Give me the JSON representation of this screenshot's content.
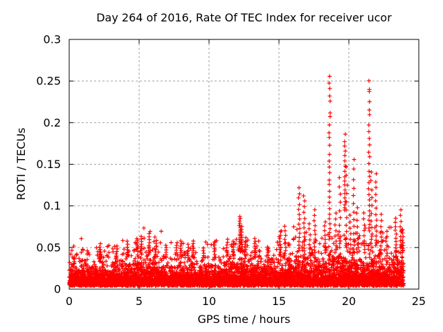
{
  "chart_data": {
    "type": "scatter",
    "title": "Day 264 of 2016, Rate Of TEC Index for receiver ucor",
    "xlabel": "GPS time / hours",
    "ylabel": "ROTI / TECUs",
    "xlim": [
      0,
      25
    ],
    "ylim": [
      0,
      0.3
    ],
    "xticks": [
      0,
      5,
      10,
      15,
      20,
      25
    ],
    "x_tick_labels": [
      "0",
      "5",
      "10",
      "15",
      "20",
      "25"
    ],
    "yticks": [
      0,
      0.05,
      0.1,
      0.15,
      0.2,
      0.25,
      0.3
    ],
    "y_tick_labels": [
      "0",
      "0.05",
      "0.1",
      "0.15",
      "0.2",
      "0.25",
      "0.3"
    ],
    "grid": true,
    "grid_style": "dashed",
    "legend": "none",
    "marker": "+",
    "marker_size_px": 7,
    "marker_color": "#ff0000",
    "grid_color": "#9e9e9e",
    "axis_color": "#000000",
    "text_color": "#000000",
    "background": "#ffffff",
    "data_time_range_hours": [
      0,
      23.92
    ],
    "max_value": {
      "t": 18.6,
      "y": 0.263
    },
    "baseline_band": {
      "description": "Dense noise band of ROTI values; solid red core ~0.005-0.035 TECU with ragged top reaching ~0.045-0.05, floor ~0.004",
      "n_points": 6000,
      "y_floor": 0.004,
      "spread_profile": [
        [
          0,
          0.0105
        ],
        [
          0.5,
          0.0115
        ],
        [
          1,
          0.01
        ],
        [
          1.5,
          0.0095
        ],
        [
          2,
          0.009
        ],
        [
          3,
          0.0095
        ],
        [
          4,
          0.01
        ],
        [
          4.8,
          0.0115
        ],
        [
          5.5,
          0.012
        ],
        [
          6,
          0.0115
        ],
        [
          6.5,
          0.01
        ],
        [
          7,
          0.0095
        ],
        [
          7.5,
          0.01
        ],
        [
          8,
          0.0105
        ],
        [
          9,
          0.0095
        ],
        [
          9.8,
          0.0085
        ],
        [
          10.5,
          0.0085
        ],
        [
          11,
          0.0095
        ],
        [
          11.8,
          0.0115
        ],
        [
          12.3,
          0.0135
        ],
        [
          13,
          0.0115
        ],
        [
          13.5,
          0.0105
        ],
        [
          14,
          0.01
        ],
        [
          14.5,
          0.0105
        ],
        [
          15,
          0.011
        ],
        [
          15.5,
          0.0115
        ],
        [
          16,
          0.0115
        ],
        [
          16.5,
          0.0125
        ],
        [
          17,
          0.012
        ],
        [
          17.5,
          0.0115
        ],
        [
          18,
          0.011
        ],
        [
          18.6,
          0.0125
        ],
        [
          19,
          0.012
        ],
        [
          19.5,
          0.0125
        ],
        [
          20,
          0.0125
        ],
        [
          20.5,
          0.012
        ],
        [
          21,
          0.0125
        ],
        [
          21.5,
          0.013
        ],
        [
          22,
          0.012
        ],
        [
          22.5,
          0.0115
        ],
        [
          23,
          0.011
        ],
        [
          23.4,
          0.0125
        ],
        [
          23.75,
          0.0145
        ],
        [
          23.92,
          0.0155
        ]
      ]
    },
    "spike_clusters": [
      {
        "t": 2.2,
        "y_min": 0.038,
        "y_max": 0.051,
        "n": 6
      },
      {
        "t": 3.4,
        "y_min": 0.038,
        "y_max": 0.052,
        "n": 6
      },
      {
        "t": 4.15,
        "y_min": 0.042,
        "y_max": 0.058,
        "n": 6
      },
      {
        "t": 4.85,
        "y_min": 0.048,
        "y_max": 0.061,
        "n": 8
      },
      {
        "t": 5.15,
        "y_min": 0.042,
        "y_max": 0.064,
        "n": 9
      },
      {
        "t": 5.7,
        "y_min": 0.042,
        "y_max": 0.067,
        "n": 9
      },
      {
        "t": 6.2,
        "y_min": 0.04,
        "y_max": 0.059,
        "n": 7
      },
      {
        "t": 6.95,
        "y_min": 0.038,
        "y_max": 0.053,
        "n": 7
      },
      {
        "t": 7.7,
        "y_min": 0.04,
        "y_max": 0.056,
        "n": 7
      },
      {
        "t": 8.0,
        "y_min": 0.04,
        "y_max": 0.058,
        "n": 8
      },
      {
        "t": 8.5,
        "y_min": 0.038,
        "y_max": 0.054,
        "n": 6
      },
      {
        "t": 8.85,
        "y_min": 0.04,
        "y_max": 0.058,
        "n": 8
      },
      {
        "t": 9.6,
        "y_min": 0.036,
        "y_max": 0.05,
        "n": 6
      },
      {
        "t": 10.4,
        "y_min": 0.036,
        "y_max": 0.058,
        "n": 7
      },
      {
        "t": 11.3,
        "y_min": 0.04,
        "y_max": 0.06,
        "n": 8
      },
      {
        "t": 11.75,
        "y_min": 0.04,
        "y_max": 0.058,
        "n": 7
      },
      {
        "t": 12.2,
        "y_min": 0.045,
        "y_max": 0.088,
        "n": 20
      },
      {
        "t": 12.35,
        "y_min": 0.045,
        "y_max": 0.076,
        "n": 12
      },
      {
        "t": 12.6,
        "y_min": 0.04,
        "y_max": 0.062,
        "n": 8
      },
      {
        "t": 13.3,
        "y_min": 0.038,
        "y_max": 0.061,
        "n": 10
      },
      {
        "t": 14.2,
        "y_min": 0.036,
        "y_max": 0.051,
        "n": 6
      },
      {
        "t": 15.1,
        "y_min": 0.04,
        "y_max": 0.069,
        "n": 10
      },
      {
        "t": 15.45,
        "y_min": 0.04,
        "y_max": 0.076,
        "n": 9
      },
      {
        "t": 16.45,
        "y_min": 0.046,
        "y_max": 0.124,
        "n": 15
      },
      {
        "t": 16.8,
        "y_min": 0.046,
        "y_max": 0.113,
        "n": 13
      },
      {
        "t": 17.2,
        "y_min": 0.04,
        "y_max": 0.08,
        "n": 8
      },
      {
        "t": 17.55,
        "y_min": 0.044,
        "y_max": 0.096,
        "n": 11
      },
      {
        "t": 18.3,
        "y_min": 0.044,
        "y_max": 0.082,
        "n": 9
      },
      {
        "t": 18.62,
        "y_min": 0.06,
        "y_max": 0.263,
        "n": 28
      },
      {
        "t": 19.05,
        "y_min": 0.044,
        "y_max": 0.092,
        "n": 9
      },
      {
        "t": 19.35,
        "y_min": 0.05,
        "y_max": 0.136,
        "n": 11
      },
      {
        "t": 19.72,
        "y_min": 0.095,
        "y_max": 0.187,
        "n": 18
      },
      {
        "t": 19.85,
        "y_min": 0.05,
        "y_max": 0.148,
        "n": 12
      },
      {
        "t": 20.1,
        "y_min": 0.044,
        "y_max": 0.09,
        "n": 8
      },
      {
        "t": 20.35,
        "y_min": 0.048,
        "y_max": 0.157,
        "n": 13
      },
      {
        "t": 20.6,
        "y_min": 0.044,
        "y_max": 0.1,
        "n": 9
      },
      {
        "t": 21.1,
        "y_min": 0.044,
        "y_max": 0.092,
        "n": 9
      },
      {
        "t": 21.45,
        "y_min": 0.07,
        "y_max": 0.256,
        "n": 26
      },
      {
        "t": 21.62,
        "y_min": 0.055,
        "y_max": 0.142,
        "n": 11
      },
      {
        "t": 21.95,
        "y_min": 0.055,
        "y_max": 0.14,
        "n": 13
      },
      {
        "t": 22.3,
        "y_min": 0.044,
        "y_max": 0.09,
        "n": 9
      },
      {
        "t": 22.7,
        "y_min": 0.04,
        "y_max": 0.07,
        "n": 7
      },
      {
        "t": 23.35,
        "y_min": 0.044,
        "y_max": 0.086,
        "n": 11
      },
      {
        "t": 23.7,
        "y_min": 0.05,
        "y_max": 0.096,
        "n": 9
      },
      {
        "t": 23.85,
        "y_min": 0.044,
        "y_max": 0.072,
        "n": 9
      }
    ]
  }
}
